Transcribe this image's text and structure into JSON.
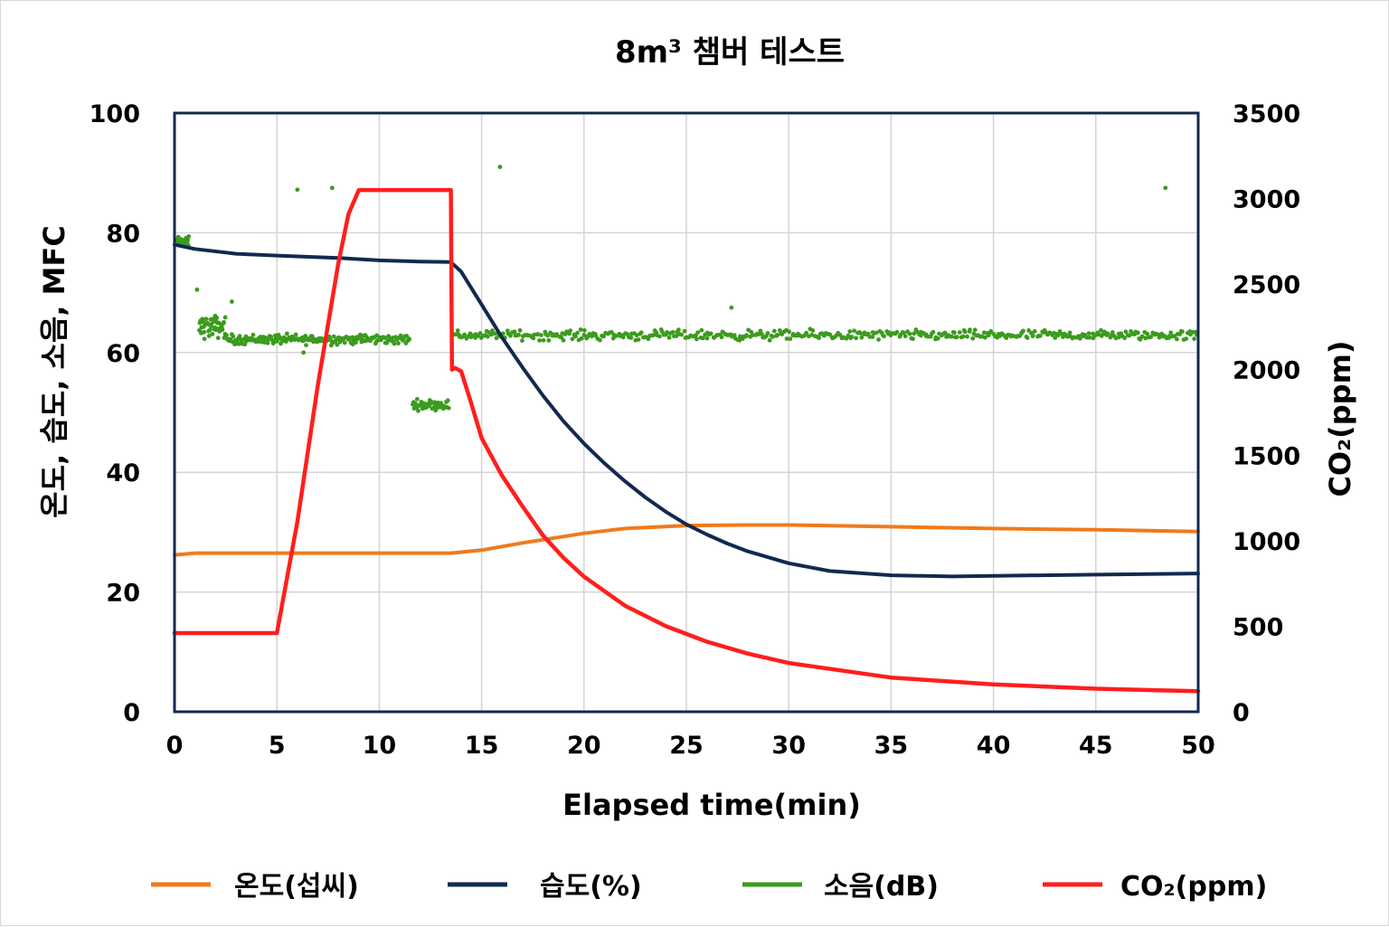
{
  "chart_data": {
    "type": "line",
    "title": "8m³ 챔버 테스트",
    "xlabel": "Elapsed time(min)",
    "ylabel_left": "온도, 습도, 소음, MFC",
    "ylabel_right": "CO₂(ppm)",
    "xlim": [
      0,
      50
    ],
    "ylim_left": [
      0,
      100
    ],
    "ylim_right": [
      0,
      3500
    ],
    "x_ticks": [
      "0",
      "5",
      "10",
      "15",
      "20",
      "25",
      "30",
      "35",
      "40",
      "45",
      "50"
    ],
    "y_left_ticks": [
      "0",
      "20",
      "40",
      "60",
      "80",
      "100"
    ],
    "y_right_ticks": [
      "0",
      "500",
      "1000",
      "1500",
      "2000",
      "2500",
      "3000",
      "3500"
    ],
    "grid": true,
    "legend_position": "bottom",
    "series": [
      {
        "name": "온도(섭씨)",
        "axis": "left",
        "color": "#f07a1c",
        "style": "line",
        "x": [
          0,
          1,
          5,
          10,
          13.5,
          15,
          17,
          20,
          22,
          25,
          28,
          30,
          35,
          40,
          45,
          50
        ],
        "y": [
          26.2,
          26.5,
          26.5,
          26.5,
          26.5,
          27,
          28.2,
          29.8,
          30.6,
          31.1,
          31.2,
          31.2,
          30.9,
          30.6,
          30.4,
          30.1
        ]
      },
      {
        "name": "습도(%)",
        "axis": "left",
        "color": "#12294f",
        "style": "line",
        "x": [
          0,
          1,
          3,
          5,
          8,
          10,
          12,
          13.5,
          14,
          15,
          16,
          17,
          18,
          19,
          20,
          21,
          22,
          23,
          24,
          25,
          26,
          27,
          28,
          30,
          32,
          35,
          38,
          40,
          45,
          50
        ],
        "y": [
          78,
          77.3,
          76.5,
          76.2,
          75.8,
          75.4,
          75.2,
          75.1,
          73.5,
          68,
          62.5,
          57.5,
          52.8,
          48.5,
          44.8,
          41.5,
          38.5,
          35.8,
          33.4,
          31.3,
          29.6,
          28.1,
          26.8,
          24.8,
          23.5,
          22.8,
          22.6,
          22.7,
          22.9,
          23.1
        ]
      },
      {
        "name": "소음(dB)",
        "axis": "left",
        "color": "#3c9b1e",
        "style": "scatter"
      },
      {
        "name": "CO₂(ppm)",
        "axis": "right",
        "color": "#ff1e1e",
        "style": "line",
        "x": [
          0,
          5,
          6,
          7,
          8,
          8.5,
          9,
          10,
          12,
          13.5,
          13.55,
          13.7,
          14,
          14.5,
          15,
          16,
          17,
          18,
          19,
          20,
          22,
          24,
          26,
          28,
          30,
          35,
          40,
          45,
          50
        ],
        "y": [
          460,
          460,
          1110,
          1910,
          2620,
          2910,
          3050,
          3050,
          3050,
          3050,
          2000,
          2010,
          1990,
          1800,
          1600,
          1380,
          1200,
          1030,
          900,
          790,
          620,
          500,
          410,
          340,
          285,
          200,
          160,
          135,
          120
        ]
      }
    ],
    "noise_clusters": [
      {
        "x_range": [
          0.1,
          0.7
        ],
        "center": 78.5,
        "spread": 0.8,
        "count": 30
      },
      {
        "x_range": [
          1.2,
          2.5
        ],
        "center": 64.3,
        "spread": 1.8,
        "count": 50
      },
      {
        "x_range": [
          2.5,
          11.5
        ],
        "center": 62.2,
        "spread": 0.8,
        "count": 200
      },
      {
        "x_range": [
          11.6,
          13.4
        ],
        "center": 51.3,
        "spread": 0.8,
        "count": 45
      },
      {
        "x_range": [
          13.6,
          50
        ],
        "center": 62.9,
        "spread": 0.8,
        "count": 460
      }
    ],
    "noise_outliers": [
      {
        "x": 1.1,
        "y": 70.5
      },
      {
        "x": 2.8,
        "y": 68.5
      },
      {
        "x": 6.0,
        "y": 87.2
      },
      {
        "x": 7.7,
        "y": 87.5
      },
      {
        "x": 15.9,
        "y": 91.0
      },
      {
        "x": 27.2,
        "y": 67.5
      },
      {
        "x": 48.4,
        "y": 87.5
      },
      {
        "x": 6.3,
        "y": 60.0
      }
    ]
  }
}
